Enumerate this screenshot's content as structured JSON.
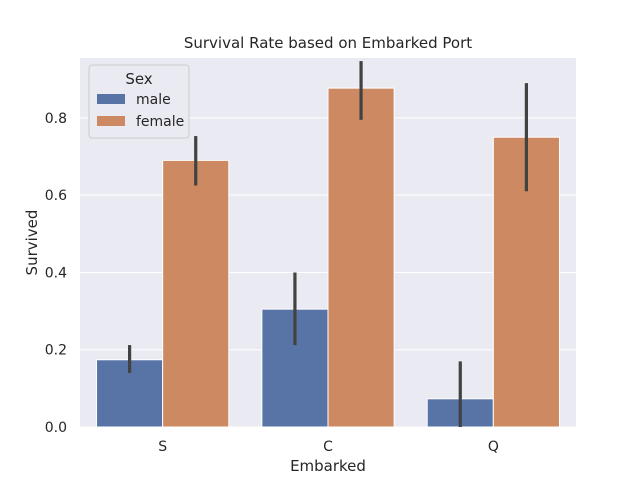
{
  "chart_data": {
    "type": "bar",
    "title": "Survival Rate based on Embarked Port",
    "xlabel": "Embarked",
    "ylabel": "Survived",
    "categories": [
      "S",
      "C",
      "Q"
    ],
    "ylim": [
      0,
      0.955
    ],
    "yticks": [
      "0.0",
      "0.2",
      "0.4",
      "0.6",
      "0.8"
    ],
    "grid": true,
    "legend": {
      "title": "Sex",
      "placement": "top-left"
    },
    "series": [
      {
        "name": "male",
        "color": "#5874a6",
        "values": [
          0.174,
          0.305,
          0.073
        ],
        "ci": [
          [
            0.14,
            0.212
          ],
          [
            0.212,
            0.4
          ],
          [
            0.0,
            0.17
          ]
        ]
      },
      {
        "name": "female",
        "color": "#cc8962",
        "values": [
          0.69,
          0.877,
          0.75
        ],
        "ci": [
          [
            0.625,
            0.753
          ],
          [
            0.795,
            0.947
          ],
          [
            0.61,
            0.89
          ]
        ]
      }
    ]
  }
}
